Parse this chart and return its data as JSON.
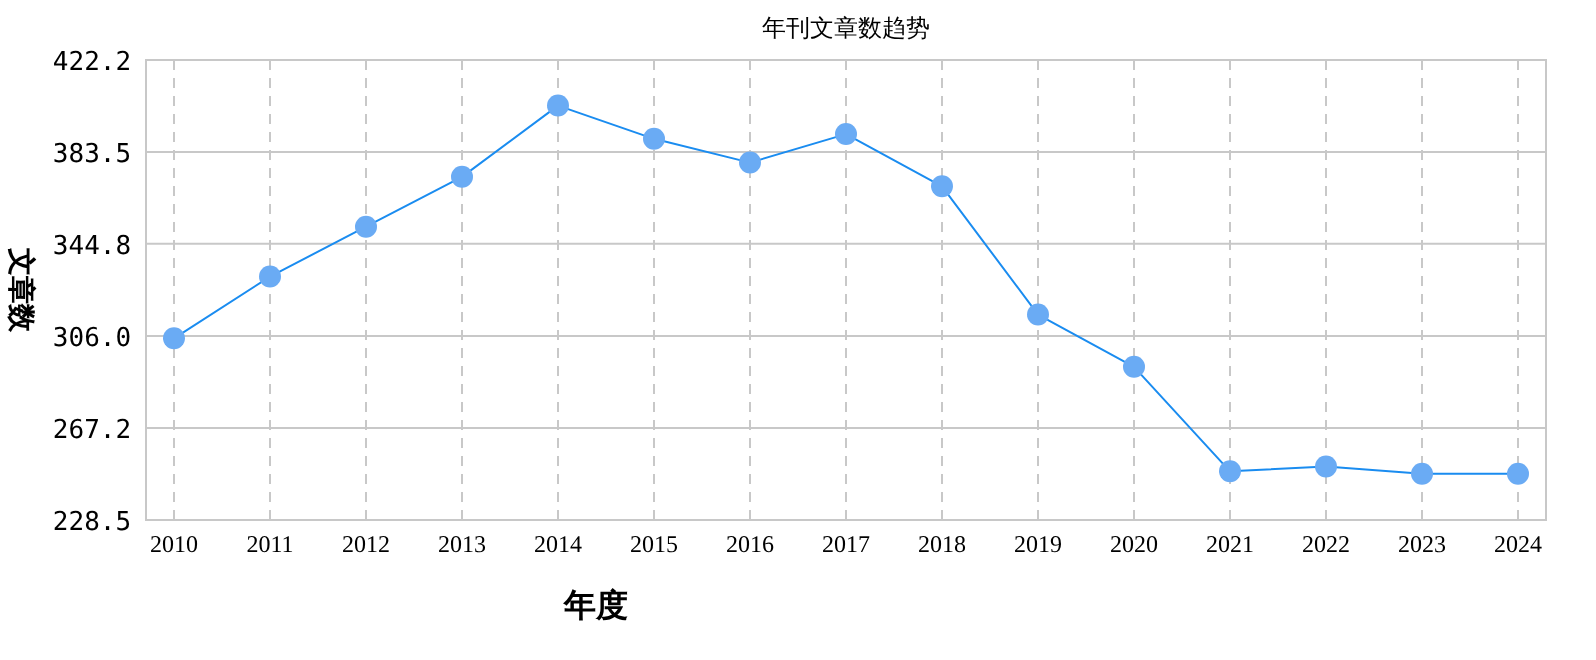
{
  "chart_data": {
    "type": "line",
    "title": "年刊文章数趋势",
    "xlabel": "年度",
    "ylabel": "文章数",
    "categories": [
      "2010",
      "2011",
      "2012",
      "2013",
      "2014",
      "2015",
      "2016",
      "2017",
      "2018",
      "2019",
      "2020",
      "2021",
      "2022",
      "2023",
      "2024"
    ],
    "series": [
      {
        "color": "#1a8cf0",
        "values": [
          305,
          331,
          352,
          373,
          403,
          389,
          379,
          391,
          369,
          315,
          293,
          249,
          251,
          248,
          248
        ]
      }
    ],
    "ylim": [
      228.5,
      422.2
    ],
    "yticks": [
      228.5,
      267.2,
      {
        "value": 306,
        "label": "306.0"
      },
      344.8,
      383.5,
      422.2
    ],
    "grid": true,
    "marker": "circle",
    "line_style": "solid"
  }
}
